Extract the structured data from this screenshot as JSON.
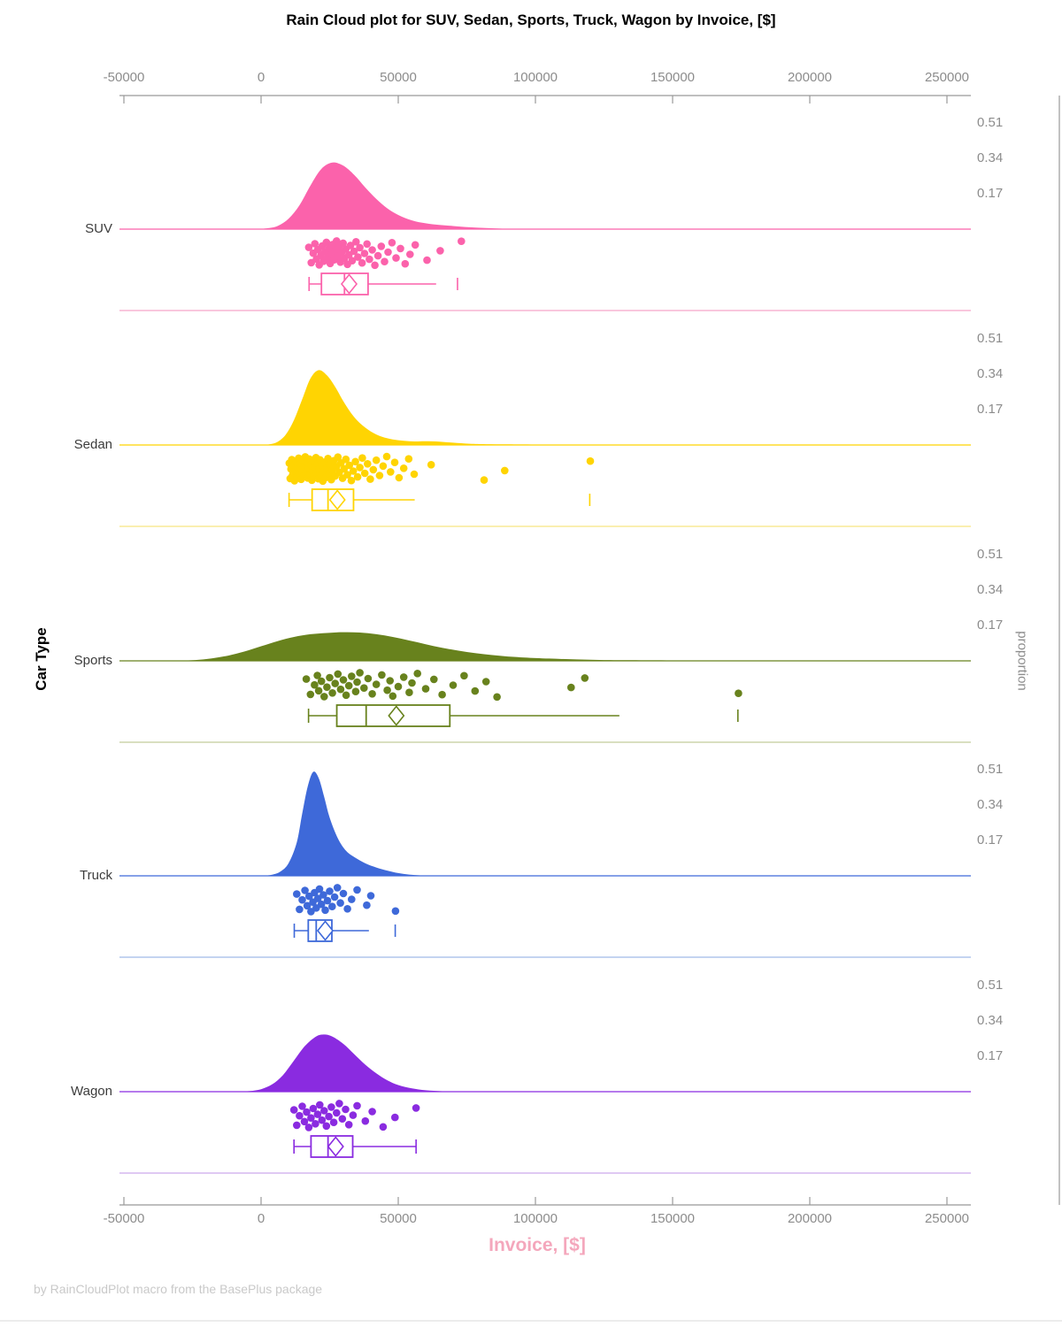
{
  "title": "Rain Cloud plot for SUV, Sedan, Sports, Truck, Wagon by Invoice, [$]",
  "footnote": "by RainCloudPlot macro from the BasePlus package",
  "axes": {
    "x_label": "Invoice, [$]",
    "y_label": "Car Type",
    "y2_label": "proportion",
    "x_ticks": [
      {
        "value": -50000,
        "label": "-50000"
      },
      {
        "value": 0,
        "label": "0"
      },
      {
        "value": 50000,
        "label": "50000"
      },
      {
        "value": 100000,
        "label": "100000"
      },
      {
        "value": 150000,
        "label": "150000"
      },
      {
        "value": 200000,
        "label": "200000"
      },
      {
        "value": 250000,
        "label": "250000"
      }
    ],
    "proportion_ticks": {
      "labels": [
        "0.51",
        "0.34",
        "0.17"
      ],
      "values": [
        0.51,
        0.34,
        0.17
      ]
    }
  },
  "colors": {
    "axis_line": "#999999",
    "tick_label": "#8C8C8C",
    "category_label": "#3C3C3C",
    "title": "#000000",
    "x_label": "#F4A7BC",
    "footnote": "#C9C9C9",
    "page_border": "#E6E6E6"
  },
  "chart_data": {
    "type": "raincloud",
    "title": "Rain Cloud plot for SUV, Sedan, Sports, Truck, Wagon by Invoice, [$]",
    "xlabel": "Invoice, [$]",
    "ylabel": "Car Type",
    "y2label": "proportion",
    "xlim": [
      -50000,
      250000
    ],
    "proportion_ticks": [
      0.51,
      0.34,
      0.17
    ],
    "categories": [
      "SUV",
      "Sedan",
      "Sports",
      "Truck",
      "Wagon"
    ],
    "series": [
      {
        "name": "SUV",
        "color": "#FB62AB",
        "light_color": "#F9C7DD",
        "density": {
          "x": [
            -2000,
            2000,
            6000,
            10000,
            14000,
            18000,
            22000,
            26000,
            30000,
            34000,
            38000,
            42000,
            46000,
            50000,
            55000,
            60000,
            65000,
            70000,
            76000,
            82000,
            88000,
            94000
          ],
          "p": [
            0,
            0.004,
            0.015,
            0.05,
            0.115,
            0.21,
            0.29,
            0.32,
            0.305,
            0.26,
            0.2,
            0.145,
            0.1,
            0.068,
            0.042,
            0.028,
            0.02,
            0.015,
            0.009,
            0.005,
            0.002,
            0
          ]
        },
        "box": {
          "whisker_low": 17500,
          "q1": 22000,
          "median": 30400,
          "q3": 39000,
          "whisker_high": 63800,
          "mean": 32100,
          "outliers": [
            71600
          ],
          "cap_low": true,
          "cap_high": false
        },
        "points": [
          17400,
          18300,
          19000,
          19600,
          20200,
          20700,
          21200,
          21800,
          22300,
          22800,
          23300,
          23800,
          24300,
          24800,
          25200,
          25700,
          26100,
          26600,
          27000,
          27500,
          27900,
          28400,
          28900,
          29400,
          29900,
          30400,
          30900,
          31500,
          32000,
          32600,
          33200,
          33900,
          34600,
          35300,
          36000,
          36800,
          37700,
          38600,
          39500,
          40500,
          41500,
          42600,
          43800,
          45000,
          46300,
          47700,
          49200,
          50800,
          52500,
          54300,
          56200,
          60500,
          65300,
          73000
        ]
      },
      {
        "name": "Sedan",
        "color": "#FFD402",
        "light_color": "#FAEFB0",
        "density": {
          "x": [
            0,
            3000,
            6000,
            9000,
            12000,
            15000,
            18000,
            21000,
            24000,
            27000,
            30000,
            33000,
            36000,
            40000,
            44000,
            48000,
            52000,
            56000,
            60000,
            65000,
            70000,
            76000,
            82000,
            90000,
            100000,
            115000,
            130000,
            150000,
            165000
          ],
          "p": [
            0,
            0.003,
            0.015,
            0.05,
            0.12,
            0.22,
            0.32,
            0.36,
            0.335,
            0.28,
            0.21,
            0.15,
            0.105,
            0.065,
            0.04,
            0.027,
            0.02,
            0.017,
            0.018,
            0.016,
            0.011,
            0.006,
            0.004,
            0.003,
            0.002,
            0.002,
            0.001,
            0.0005,
            0
          ]
        },
        "box": {
          "whisker_low": 10200,
          "q1": 18600,
          "median": 24400,
          "q3": 33700,
          "whisker_high": 56000,
          "mean": 27800,
          "outliers": [
            119800
          ],
          "cap_low": true,
          "cap_high": false
        },
        "points": [
          10300,
          10600,
          10900,
          11200,
          11500,
          11900,
          12200,
          12500,
          12800,
          13100,
          13400,
          13700,
          14000,
          14300,
          14600,
          14900,
          15200,
          15500,
          15800,
          16100,
          16400,
          16700,
          17000,
          17300,
          17600,
          17900,
          18200,
          18500,
          18800,
          19100,
          19400,
          19700,
          20000,
          20300,
          20600,
          20900,
          21200,
          21500,
          21900,
          22200,
          22500,
          22900,
          23200,
          23600,
          24000,
          24400,
          24800,
          25200,
          25600,
          26000,
          26500,
          27000,
          27500,
          28000,
          28500,
          29100,
          29700,
          30300,
          30900,
          31500,
          32200,
          32900,
          33600,
          34400,
          35200,
          36000,
          36900,
          37800,
          38800,
          39800,
          40900,
          42000,
          43200,
          44500,
          45800,
          47200,
          48700,
          50300,
          52000,
          53800,
          55800,
          62000,
          81300,
          88800,
          120000
        ]
      },
      {
        "name": "Sports",
        "color": "#68821D",
        "light_color": "#D9DFC0",
        "density": {
          "x": [
            -30000,
            -24000,
            -18000,
            -12000,
            -6000,
            0,
            6000,
            12000,
            18000,
            24000,
            30000,
            36000,
            42000,
            48000,
            54000,
            60000,
            66000,
            72000,
            78000,
            84000,
            90000,
            96000,
            105000,
            115000,
            125000,
            135000,
            150000,
            170000,
            190000
          ],
          "p": [
            0,
            0.004,
            0.012,
            0.025,
            0.045,
            0.07,
            0.095,
            0.115,
            0.128,
            0.134,
            0.138,
            0.136,
            0.128,
            0.115,
            0.098,
            0.08,
            0.063,
            0.049,
            0.037,
            0.028,
            0.021,
            0.016,
            0.011,
            0.007,
            0.004,
            0.003,
            0.002,
            0.001,
            0
          ]
        },
        "box": {
          "whisker_low": 17300,
          "q1": 27600,
          "median": 38300,
          "q3": 68800,
          "whisker_high": 130600,
          "mean": 49300,
          "outliers": [
            173800
          ],
          "cap_low": true,
          "cap_high": false
        },
        "points": [
          16500,
          18000,
          19500,
          20500,
          21000,
          22000,
          23000,
          24000,
          25000,
          26000,
          27000,
          28000,
          29000,
          30000,
          31000,
          32000,
          33000,
          34500,
          35000,
          36000,
          37500,
          39000,
          40500,
          42000,
          44000,
          46000,
          47000,
          48000,
          50000,
          52000,
          54000,
          55000,
          57000,
          60000,
          63000,
          66000,
          70000,
          74000,
          78000,
          82000,
          86000,
          113000,
          118000,
          174000
        ]
      },
      {
        "name": "Truck",
        "color": "#3E69D9",
        "light_color": "#C4D4F1",
        "density": {
          "x": [
            1000,
            4000,
            7000,
            10000,
            13000,
            15000,
            17000,
            19000,
            21000,
            23000,
            25000,
            28000,
            31000,
            34000,
            38000,
            42000,
            46000,
            50000,
            54000,
            58000,
            62000
          ],
          "p": [
            0,
            0.005,
            0.02,
            0.06,
            0.16,
            0.3,
            0.43,
            0.5,
            0.47,
            0.38,
            0.28,
            0.18,
            0.12,
            0.09,
            0.06,
            0.04,
            0.025,
            0.013,
            0.006,
            0.002,
            0
          ]
        },
        "box": {
          "whisker_low": 12100,
          "q1": 17200,
          "median": 20100,
          "q3": 25800,
          "whisker_high": 39300,
          "mean": 23400,
          "outliers": [
            48900
          ],
          "cap_low": true,
          "cap_high": false
        },
        "points": [
          13000,
          14000,
          15000,
          16000,
          16800,
          17500,
          18200,
          18900,
          19500,
          20100,
          20700,
          21300,
          22000,
          22700,
          23400,
          24200,
          25000,
          25900,
          26800,
          27800,
          28900,
          30000,
          31500,
          33000,
          35000,
          38500,
          40000,
          49000
        ]
      },
      {
        "name": "Wagon",
        "color": "#8A2BE0",
        "light_color": "#DFC9F3",
        "density": {
          "x": [
            -8000,
            -4000,
            0,
            4000,
            8000,
            12000,
            16000,
            20000,
            23000,
            26000,
            30000,
            34000,
            38000,
            42000,
            46000,
            50000,
            55000,
            60000,
            66000,
            72000
          ],
          "p": [
            0,
            0.003,
            0.012,
            0.035,
            0.08,
            0.15,
            0.22,
            0.265,
            0.275,
            0.265,
            0.23,
            0.18,
            0.13,
            0.088,
            0.055,
            0.032,
            0.016,
            0.007,
            0.002,
            0
          ]
        },
        "box": {
          "whisker_low": 12000,
          "q1": 18200,
          "median": 24400,
          "q3": 33400,
          "whisker_high": 56500,
          "mean": 27200,
          "outliers": [],
          "cap_low": true,
          "cap_high": true
        },
        "points": [
          12000,
          13000,
          14000,
          15000,
          15800,
          16600,
          17400,
          18200,
          19000,
          19800,
          20600,
          21400,
          22200,
          23000,
          23800,
          24700,
          25600,
          26500,
          27500,
          28500,
          29600,
          30800,
          32000,
          33500,
          35000,
          38000,
          40500,
          44500,
          48800,
          56500
        ]
      }
    ]
  }
}
